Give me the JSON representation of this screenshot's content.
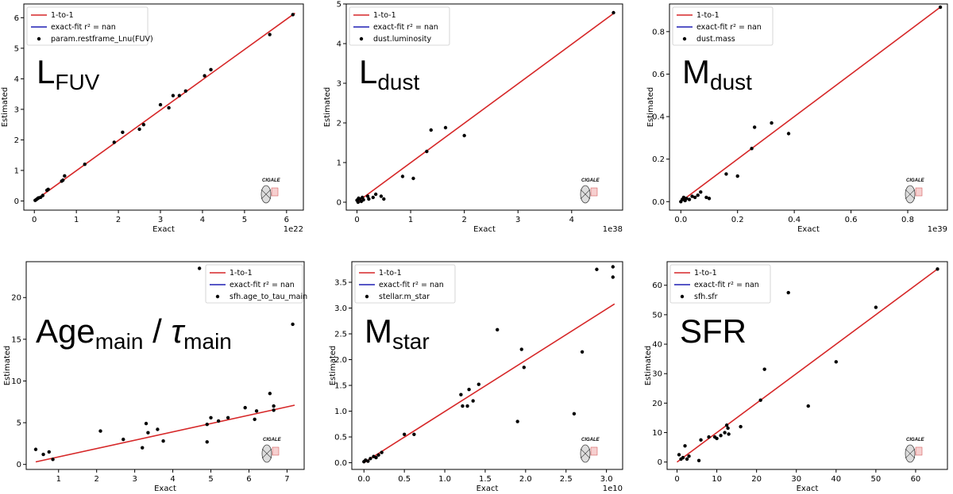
{
  "chart_data": [
    {
      "type": "scatter",
      "title": "L",
      "title_sub": "FUV",
      "xlabel": "Exact",
      "ylabel": "Estimated",
      "offset_text": "1e22",
      "xlim": [
        -0.25,
        6.4
      ],
      "ylim": [
        -0.3,
        6.45
      ],
      "xticks": [
        0,
        1,
        2,
        3,
        4,
        5,
        6
      ],
      "yticks": [
        0,
        1,
        2,
        3,
        4,
        5,
        6
      ],
      "legend": [
        "1-to-1",
        "exact-fit r² = nan",
        "param.restframe_Lnu(FUV)"
      ],
      "fit_line": {
        "x": [
          0,
          6.2
        ],
        "y": [
          0,
          6.15
        ]
      },
      "points": [
        [
          0.02,
          0.02
        ],
        [
          0.05,
          0.05
        ],
        [
          0.08,
          0.08
        ],
        [
          0.1,
          0.1
        ],
        [
          0.15,
          0.12
        ],
        [
          0.2,
          0.18
        ],
        [
          0.3,
          0.35
        ],
        [
          0.33,
          0.38
        ],
        [
          0.65,
          0.65
        ],
        [
          0.68,
          0.68
        ],
        [
          0.72,
          0.82
        ],
        [
          1.2,
          1.2
        ],
        [
          1.9,
          1.92
        ],
        [
          2.1,
          2.25
        ],
        [
          2.5,
          2.35
        ],
        [
          2.6,
          2.5
        ],
        [
          3.0,
          3.15
        ],
        [
          3.2,
          3.05
        ],
        [
          3.3,
          3.45
        ],
        [
          3.45,
          3.45
        ],
        [
          3.6,
          3.6
        ],
        [
          4.05,
          4.1
        ],
        [
          4.2,
          4.3
        ],
        [
          5.6,
          5.45
        ],
        [
          6.15,
          6.1
        ]
      ]
    },
    {
      "type": "scatter",
      "title": "L",
      "title_sub": "dust",
      "xlabel": "Exact",
      "ylabel": "Estimated",
      "offset_text": "1e38",
      "xlim": [
        -0.2,
        4.95
      ],
      "ylim": [
        -0.2,
        5.0
      ],
      "xticks": [
        0,
        1,
        2,
        3,
        4
      ],
      "yticks": [
        0,
        1,
        2,
        3,
        4,
        5
      ],
      "legend": [
        "1-to-1",
        "exact-fit r² = nan",
        "dust.luminosity"
      ],
      "fit_line": {
        "x": [
          0,
          4.78
        ],
        "y": [
          0,
          4.76
        ]
      },
      "points": [
        [
          0.0,
          0.05
        ],
        [
          0.02,
          0.0
        ],
        [
          0.03,
          0.1
        ],
        [
          0.05,
          0.08
        ],
        [
          0.08,
          0.02
        ],
        [
          0.1,
          0.12
        ],
        [
          0.12,
          0.06
        ],
        [
          0.2,
          0.15
        ],
        [
          0.22,
          0.08
        ],
        [
          0.3,
          0.12
        ],
        [
          0.35,
          0.2
        ],
        [
          0.45,
          0.15
        ],
        [
          0.5,
          0.08
        ],
        [
          0.85,
          0.65
        ],
        [
          1.05,
          0.6
        ],
        [
          1.3,
          1.28
        ],
        [
          1.38,
          1.82
        ],
        [
          1.65,
          1.88
        ],
        [
          2.0,
          1.68
        ],
        [
          4.78,
          4.78
        ]
      ]
    },
    {
      "type": "scatter",
      "title": "M",
      "title_sub": "dust",
      "xlabel": "Exact",
      "ylabel": "Estimated",
      "offset_text": "1e39",
      "xlim": [
        -0.04,
        0.94
      ],
      "ylim": [
        -0.04,
        0.93
      ],
      "xticks": [
        0.0,
        0.2,
        0.4,
        0.6,
        0.8
      ],
      "yticks": [
        0.0,
        0.2,
        0.4,
        0.6,
        0.8
      ],
      "legend": [
        "1-to-1",
        "exact-fit r² = nan",
        "dust.mass"
      ],
      "fit_line": {
        "x": [
          0,
          0.915
        ],
        "y": [
          0,
          0.915
        ]
      },
      "points": [
        [
          0.0,
          0.0
        ],
        [
          0.005,
          0.01
        ],
        [
          0.01,
          0.02
        ],
        [
          0.015,
          0.005
        ],
        [
          0.02,
          0.015
        ],
        [
          0.03,
          0.01
        ],
        [
          0.04,
          0.025
        ],
        [
          0.05,
          0.02
        ],
        [
          0.06,
          0.03
        ],
        [
          0.07,
          0.045
        ],
        [
          0.09,
          0.02
        ],
        [
          0.1,
          0.015
        ],
        [
          0.16,
          0.13
        ],
        [
          0.2,
          0.12
        ],
        [
          0.25,
          0.25
        ],
        [
          0.26,
          0.35
        ],
        [
          0.32,
          0.37
        ],
        [
          0.38,
          0.32
        ],
        [
          0.915,
          0.915
        ]
      ]
    },
    {
      "type": "scatter",
      "title": "Age",
      "title_sub": "main",
      "title_sep": " / ",
      "title2": "τ",
      "title2_sub": "main",
      "xlabel": "Exact",
      "ylabel": "Estimated",
      "offset_text": "",
      "xlim": [
        0.15,
        7.45
      ],
      "ylim": [
        -0.6,
        24.3
      ],
      "xticks": [
        1,
        2,
        3,
        4,
        5,
        6,
        7
      ],
      "yticks": [
        0,
        5,
        10,
        15,
        20
      ],
      "legend": [
        "1-to-1",
        "exact-fit r² = nan",
        "sfh.age_to_tau_main"
      ],
      "fit_line": {
        "x": [
          0.4,
          7.2
        ],
        "y": [
          0.3,
          7.1
        ]
      },
      "points": [
        [
          0.4,
          1.8
        ],
        [
          0.6,
          1.2
        ],
        [
          0.75,
          1.5
        ],
        [
          0.85,
          0.6
        ],
        [
          2.1,
          4.0
        ],
        [
          2.7,
          3.0
        ],
        [
          3.2,
          2.0
        ],
        [
          3.3,
          4.9
        ],
        [
          3.35,
          3.8
        ],
        [
          3.6,
          4.2
        ],
        [
          3.75,
          2.8
        ],
        [
          4.7,
          23.5
        ],
        [
          4.9,
          2.7
        ],
        [
          4.9,
          4.8
        ],
        [
          5.0,
          5.6
        ],
        [
          5.2,
          5.2
        ],
        [
          5.45,
          5.6
        ],
        [
          5.9,
          6.8
        ],
        [
          6.15,
          5.4
        ],
        [
          6.2,
          6.4
        ],
        [
          6.55,
          8.5
        ],
        [
          6.65,
          7.0
        ],
        [
          6.65,
          6.5
        ],
        [
          7.15,
          16.8
        ]
      ]
    },
    {
      "type": "scatter",
      "title": "M",
      "title_sub": "star",
      "xlabel": "Exact",
      "ylabel": "Estimated",
      "offset_text": "1e10",
      "xlim": [
        -0.15,
        3.2
      ],
      "ylim": [
        -0.13,
        3.9
      ],
      "xticks": [
        0.0,
        0.5,
        1.0,
        1.5,
        2.0,
        2.5,
        3.0
      ],
      "yticks": [
        0.0,
        0.5,
        1.0,
        1.5,
        2.0,
        2.5,
        3.0,
        3.5
      ],
      "legend": [
        "1-to-1",
        "exact-fit r² = nan",
        "stellar.m_star"
      ],
      "fit_line": {
        "x": [
          0,
          3.1
        ],
        "y": [
          0,
          3.08
        ]
      },
      "points": [
        [
          0.0,
          0.02
        ],
        [
          0.02,
          0.05
        ],
        [
          0.05,
          0.03
        ],
        [
          0.08,
          0.08
        ],
        [
          0.12,
          0.12
        ],
        [
          0.15,
          0.1
        ],
        [
          0.18,
          0.15
        ],
        [
          0.22,
          0.2
        ],
        [
          0.5,
          0.55
        ],
        [
          0.62,
          0.55
        ],
        [
          1.2,
          1.32
        ],
        [
          1.22,
          1.1
        ],
        [
          1.28,
          1.1
        ],
        [
          1.3,
          1.42
        ],
        [
          1.35,
          1.2
        ],
        [
          1.42,
          1.52
        ],
        [
          1.65,
          2.58
        ],
        [
          1.9,
          0.8
        ],
        [
          1.95,
          2.2
        ],
        [
          1.98,
          1.85
        ],
        [
          2.6,
          0.95
        ],
        [
          2.7,
          2.15
        ],
        [
          2.88,
          3.75
        ],
        [
          3.08,
          3.8
        ],
        [
          3.08,
          3.6
        ]
      ]
    },
    {
      "type": "scatter",
      "title": "SFR",
      "title_sub": "",
      "xlabel": "Exact",
      "ylabel": "Estimated",
      "offset_text": "",
      "xlim": [
        -2.5,
        68
      ],
      "ylim": [
        -2.5,
        68
      ],
      "xticks": [
        0,
        10,
        20,
        30,
        40,
        50,
        60
      ],
      "yticks": [
        0,
        10,
        20,
        30,
        40,
        50,
        60
      ],
      "legend": [
        "1-to-1",
        "exact-fit r² = nan",
        "sfh.sfr"
      ],
      "fit_line": {
        "x": [
          0,
          65.5
        ],
        "y": [
          0,
          65.5
        ]
      },
      "points": [
        [
          0.5,
          2.5
        ],
        [
          1.0,
          1.0
        ],
        [
          1.5,
          1.5
        ],
        [
          2.0,
          5.5
        ],
        [
          2.5,
          1.0
        ],
        [
          3.0,
          2.0
        ],
        [
          5.5,
          0.5
        ],
        [
          6.0,
          7.5
        ],
        [
          8.0,
          8.5
        ],
        [
          9.5,
          8.5
        ],
        [
          10.0,
          8.0
        ],
        [
          11.0,
          9.0
        ],
        [
          12.0,
          10.0
        ],
        [
          12.5,
          12.5
        ],
        [
          12.8,
          11.5
        ],
        [
          13.0,
          9.5
        ],
        [
          16.0,
          12.0
        ],
        [
          21.0,
          21.0
        ],
        [
          22.0,
          31.5
        ],
        [
          28.0,
          57.5
        ],
        [
          33.0,
          19.0
        ],
        [
          40.0,
          34.0
        ],
        [
          50.0,
          52.5
        ],
        [
          65.5,
          65.5
        ]
      ]
    }
  ]
}
